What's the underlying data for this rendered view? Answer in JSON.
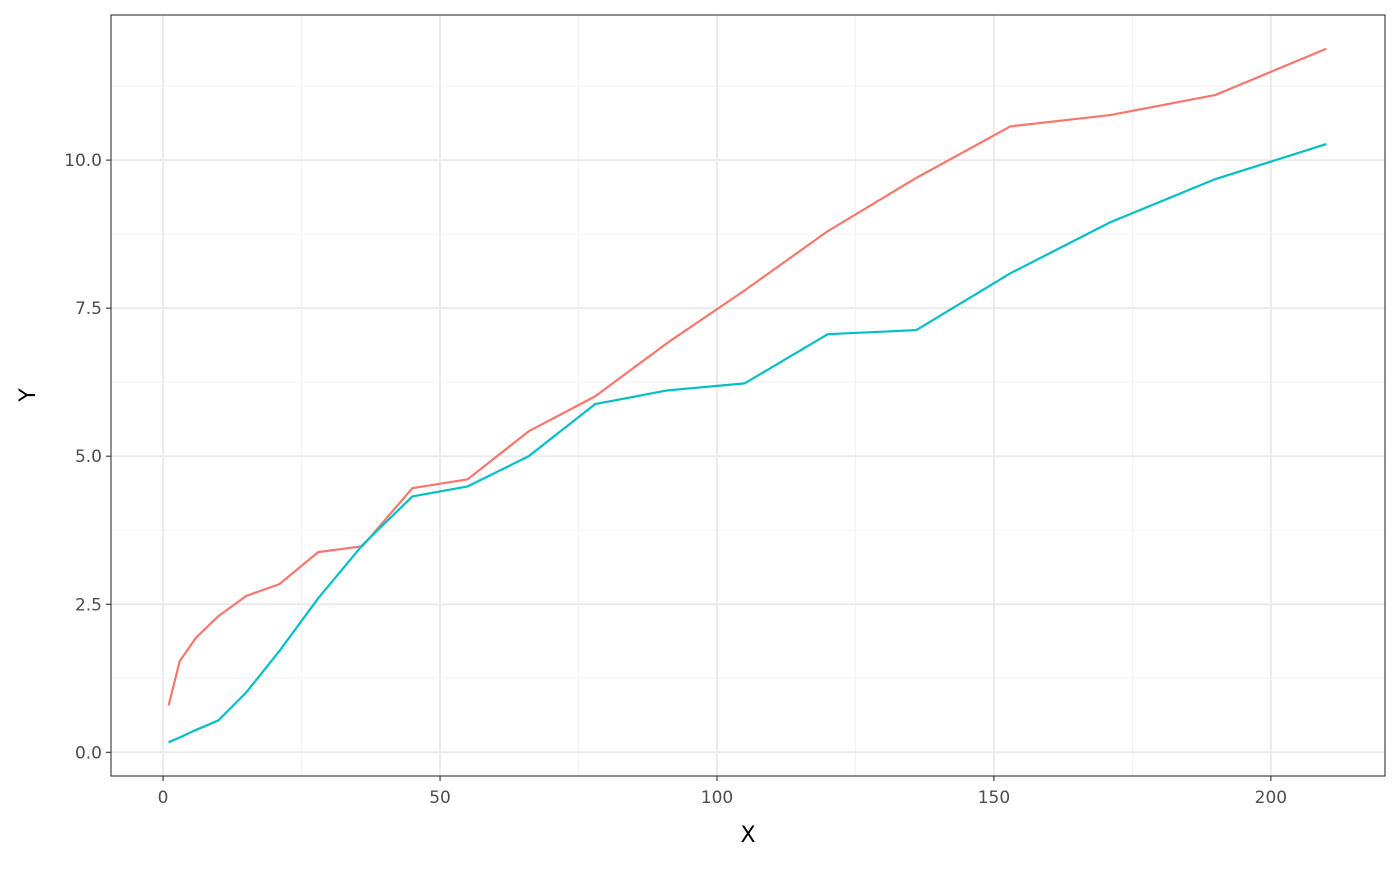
{
  "chart_data": {
    "type": "line",
    "title": "",
    "xlabel": "X",
    "ylabel": "Y",
    "xlim": [
      -9.4,
      220.6
    ],
    "ylim": [
      -0.4,
      12.45
    ],
    "x_ticks": [
      0,
      50,
      100,
      150,
      200
    ],
    "x_tick_labels": [
      "0",
      "50",
      "100",
      "150",
      "200"
    ],
    "y_ticks": [
      0,
      2.5,
      5,
      7.5,
      10
    ],
    "y_tick_labels": [
      "0.0",
      "2.5",
      "5.0",
      "7.5",
      "10.0"
    ],
    "grid": true,
    "legend": "none",
    "x": [
      1,
      3,
      6,
      10,
      15,
      21,
      28,
      36,
      45,
      55,
      66,
      78,
      91,
      105,
      120,
      136,
      153,
      171,
      190,
      210
    ],
    "series": [
      {
        "color": "#F8766D",
        "values": [
          0.79,
          1.54,
          1.94,
          2.3,
          2.64,
          2.84,
          3.38,
          3.48,
          4.46,
          4.61,
          5.42,
          6.01,
          6.91,
          7.8,
          8.8,
          9.7,
          10.57,
          10.76,
          11.1,
          11.88
        ]
      },
      {
        "color": "#00BFC4",
        "values": [
          0.17,
          0.25,
          0.38,
          0.54,
          1.01,
          1.71,
          2.6,
          3.5,
          4.32,
          4.49,
          5.0,
          5.88,
          6.11,
          6.23,
          7.06,
          7.13,
          8.09,
          8.95,
          9.68,
          10.27
        ]
      }
    ]
  }
}
